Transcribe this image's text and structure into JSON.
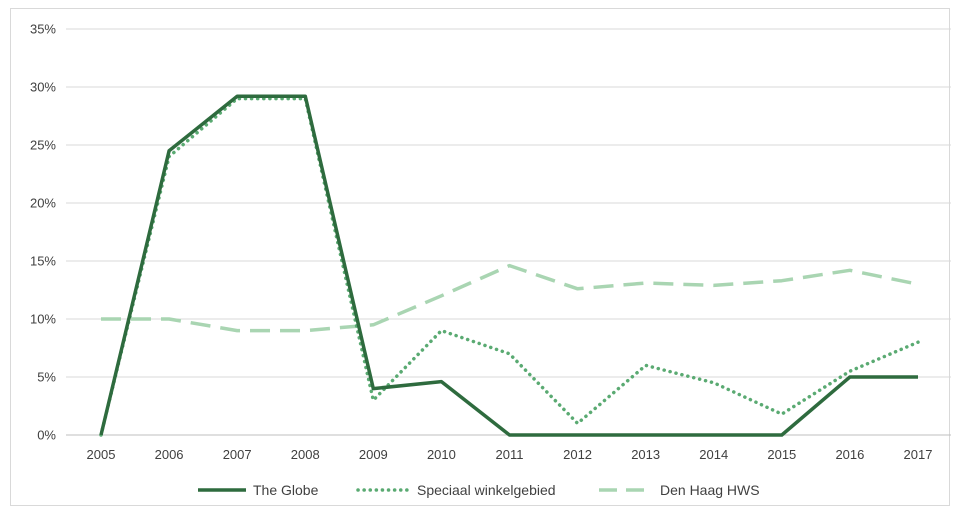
{
  "chart_data": {
    "type": "line",
    "x": [
      "2005",
      "2006",
      "2007",
      "2008",
      "2009",
      "2010",
      "2011",
      "2012",
      "2013",
      "2014",
      "2015",
      "2016",
      "2017"
    ],
    "ylim": [
      0,
      35
    ],
    "yticks": [
      0,
      5,
      10,
      15,
      20,
      25,
      30,
      35
    ],
    "ytick_labels": [
      "0%",
      "5%",
      "10%",
      "15%",
      "20%",
      "25%",
      "30%",
      "35%"
    ],
    "grid": true,
    "legend_position": "bottom",
    "series": [
      {
        "name": "The Globe",
        "style": "solid",
        "color": "#2e6b3e",
        "values": [
          0,
          24.5,
          29.2,
          29.2,
          4.0,
          4.6,
          0,
          0,
          0,
          0,
          0,
          5.0,
          5.0
        ]
      },
      {
        "name": "Speciaal winkelgebied",
        "style": "dotted",
        "color": "#5aaa72",
        "values": [
          0,
          24.0,
          29.0,
          29.0,
          3.0,
          9.0,
          7.0,
          1.0,
          6.0,
          4.5,
          1.8,
          5.5,
          8.0
        ]
      },
      {
        "name": "Den Haag HWS",
        "style": "dashed",
        "color": "#a9d5b2",
        "values": [
          10.0,
          10.0,
          9.0,
          9.0,
          9.5,
          12.0,
          14.6,
          12.6,
          13.1,
          12.9,
          13.3,
          14.2,
          13.0
        ]
      }
    ]
  }
}
